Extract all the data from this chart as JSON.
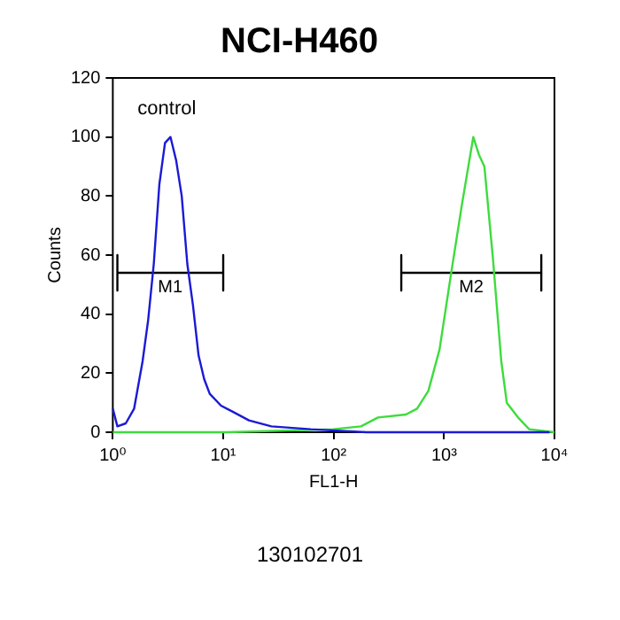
{
  "chart_data": {
    "type": "line",
    "title": "NCI-H460",
    "xlabel": "FL1-H",
    "ylabel": "Counts",
    "log": "x",
    "xlim": [
      1,
      10000
    ],
    "xticks": [
      {
        "value": 1,
        "label": "10⁰"
      },
      {
        "value": 10,
        "label": "10¹"
      },
      {
        "value": 100,
        "label": "10²"
      },
      {
        "value": 1000,
        "label": "10³"
      },
      {
        "value": 10000,
        "label": "10⁴"
      }
    ],
    "ylim": [
      0,
      120
    ],
    "yticks": [
      0,
      20,
      40,
      60,
      80,
      100,
      120
    ],
    "grid": false,
    "legend": false,
    "marker": "none",
    "line_style": "solid",
    "series": [
      {
        "color": "#1a1ad6",
        "x": [
          1,
          1.1,
          1.31,
          1.56,
          1.86,
          2.09,
          2.35,
          2.64,
          2.97,
          3.33,
          3.75,
          4.21,
          4.73,
          5.32,
          5.98,
          6.72,
          7.55,
          9.55,
          12.1,
          17.1,
          27.3,
          62,
          199,
          1150,
          9000
        ],
        "values": [
          8,
          2,
          3,
          8,
          24,
          38,
          57,
          84,
          98,
          100,
          92,
          80,
          57,
          43,
          26,
          18,
          13,
          9,
          7,
          4,
          2,
          1,
          0,
          0,
          0
        ]
      },
      {
        "color": "#3ddc3d",
        "x": [
          1,
          10.7,
          99,
          177,
          252,
          452,
          570,
          721,
          910,
          1150,
          1450,
          1840,
          2070,
          2320,
          2770,
          3300,
          3700,
          4680,
          5910,
          10000
        ],
        "values": [
          0,
          0,
          1,
          2,
          5,
          6,
          8,
          14,
          28,
          53,
          77,
          100,
          94,
          90,
          59,
          24,
          10,
          5,
          1,
          0
        ]
      },
      {
        "name": "M1",
        "color": "#000000",
        "x": [
          1.1,
          1.1,
          1.1,
          10,
          10,
          10
        ],
        "values": [
          60,
          48,
          54,
          54,
          60,
          48
        ]
      },
      {
        "name": "M2",
        "color": "#000000",
        "x": [
          410,
          410,
          410,
          7600,
          7600,
          7600
        ],
        "values": [
          60,
          48,
          54,
          54,
          60,
          48
        ]
      }
    ],
    "annotations": [
      "control",
      "130102701"
    ]
  }
}
